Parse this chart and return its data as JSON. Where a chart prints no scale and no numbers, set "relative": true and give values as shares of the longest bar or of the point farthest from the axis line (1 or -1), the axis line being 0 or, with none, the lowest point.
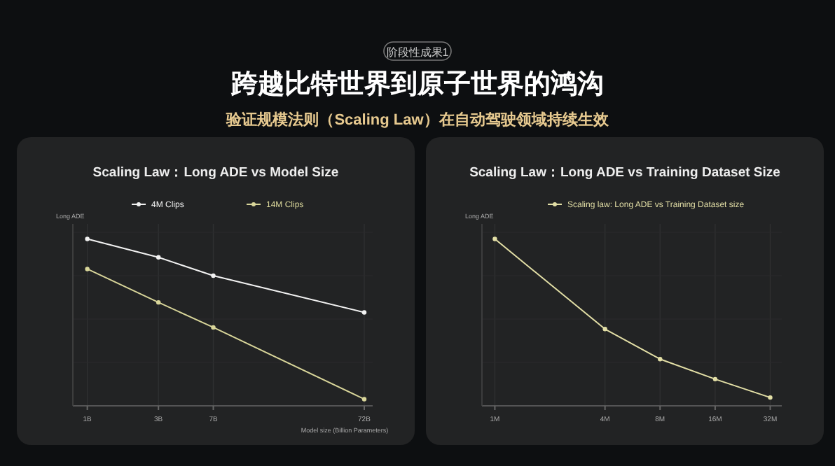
{
  "chart_data": [
    {
      "type": "line",
      "title": "Scaling Law：Long ADE vs Model Size",
      "annotations": [
        "阶段性成果1",
        "跨越比特世界到原子世界的鸿沟",
        "验证规模法则（Scaling Law）在自动驾驶领域持续生效"
      ],
      "ylabel": "Long ADE",
      "xlabel": "Model size (Billion Parameters)",
      "relative": true,
      "log": "x",
      "x": [
        1,
        3,
        7,
        72
      ],
      "xlim": [
        0.8,
        82
      ],
      "xticks": [
        {
          "value": 1,
          "label": "1B"
        },
        {
          "value": 3,
          "label": "3B"
        },
        {
          "value": 7,
          "label": "7B"
        },
        {
          "value": 72,
          "label": "72B"
        }
      ],
      "grid": true,
      "legend": "top",
      "marker": "circle",
      "series": [
        {
          "name": "4M Clips",
          "color": "#f2f2f2",
          "values": [
            1,
            0.89,
            0.78,
            0.56
          ]
        },
        {
          "name": "14M Clips",
          "color": "#d9d69a",
          "values": [
            0.82,
            0.62,
            0.47,
            0.04
          ]
        }
      ]
    },
    {
      "type": "line",
      "title": "Scaling Law：Long ADE vs Training Dataset Size",
      "ylabel": "Long ADE",
      "relative": true,
      "log": "x",
      "x": [
        1,
        4,
        8,
        16,
        32
      ],
      "xlim": [
        0.85,
        37
      ],
      "xticks": [
        {
          "value": 1,
          "label": "1M"
        },
        {
          "value": 4,
          "label": "4M"
        },
        {
          "value": 8,
          "label": "8M"
        },
        {
          "value": 16,
          "label": "16M"
        },
        {
          "value": 32,
          "label": "32M"
        }
      ],
      "grid": true,
      "legend": "top",
      "marker": "circle",
      "series": [
        {
          "name": "Scaling law: Long ADE vs Training Dataset size",
          "color": "#e3dfa6",
          "values": [
            1,
            0.46,
            0.28,
            0.16,
            0.05
          ]
        }
      ]
    }
  ]
}
